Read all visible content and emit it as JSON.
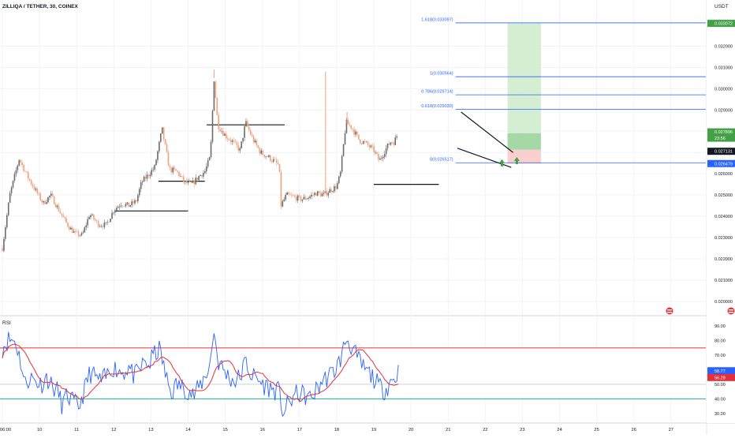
{
  "header": {
    "symbol_title": "ZILLIQA / TETHER, 30, COINEX",
    "currency": "USDT"
  },
  "colors": {
    "candle_up": "#6b6b6b",
    "candle_down": "#f0a27a",
    "rsi_line": "#2962ff",
    "rsi_ma": "#e5303a",
    "rsi_upper_band": "#e5303a",
    "rsi_lower_band": "#22ab94",
    "fib_line": "#2962ff",
    "target_zone": "#cdebc9",
    "stop_zone": "#f8c7c8"
  },
  "price_axis": {
    "labels": [
      "0.020000",
      "0.021000",
      "0.022000",
      "0.023000",
      "0.024000",
      "0.025000",
      "0.026000",
      "0.027000",
      "0.028000",
      "0.029000",
      "0.030000",
      "0.031000",
      "0.032000"
    ],
    "badges": [
      {
        "text": "0.033072",
        "color": "#43a047"
      },
      {
        "text": "0.027896",
        "color": "#43a047"
      },
      {
        "text": "23:56",
        "color": "#43a047"
      },
      {
        "text": "0.027131",
        "color": "#131722"
      },
      {
        "text": "0.026479",
        "color": "#2962ff"
      }
    ]
  },
  "fib_levels": [
    {
      "label": "1.618(0.033097)",
      "value": 0.033097
    },
    {
      "label": "1(0.030564)",
      "value": 0.030564
    },
    {
      "label": "0.786(0.029714)",
      "value": 0.029714
    },
    {
      "label": "0.618(0.029030)",
      "value": 0.02903
    },
    {
      "label": "0(0.026517)",
      "value": 0.026517
    }
  ],
  "time_axis": {
    "labels": [
      "06:00",
      "10",
      "11",
      "12",
      "13",
      "14",
      "15",
      "16",
      "17",
      "18",
      "19",
      "20",
      "21",
      "22",
      "23",
      "24",
      "25",
      "26",
      "27"
    ]
  },
  "rsi_panel": {
    "title": "RSI",
    "axis_labels": [
      "90.00",
      "80.00",
      "70.00",
      "60.00",
      "50.00",
      "40.00",
      "30.00"
    ],
    "badges": [
      {
        "text": "58.77",
        "color": "#2962ff"
      },
      {
        "text": "56.28",
        "color": "#e5303a"
      }
    ]
  },
  "chart_data": {
    "type": "candlestick",
    "title": "ZILLIQA / TETHER, 30, COINEX",
    "ylabel": "USDT",
    "ylim": [
      0.0194,
      0.0338
    ],
    "x": [
      "06:00",
      "10",
      "11",
      "12",
      "13",
      "14",
      "15",
      "16",
      "17",
      "18",
      "19",
      "20",
      "21",
      "22",
      "23",
      "24",
      "25",
      "26",
      "27"
    ],
    "price_path": [
      [
        0.0,
        0.0225
      ],
      [
        0.2,
        0.025
      ],
      [
        0.45,
        0.0267
      ],
      [
        0.7,
        0.0258
      ],
      [
        0.9,
        0.0252
      ],
      [
        1.1,
        0.0246
      ],
      [
        1.3,
        0.025
      ],
      [
        1.55,
        0.0242
      ],
      [
        1.75,
        0.0236
      ],
      [
        1.95,
        0.0232
      ],
      [
        2.15,
        0.0231
      ],
      [
        2.35,
        0.0241
      ],
      [
        2.6,
        0.0236
      ],
      [
        2.8,
        0.0236
      ],
      [
        3.0,
        0.0243
      ],
      [
        3.2,
        0.0246
      ],
      [
        3.4,
        0.0245
      ],
      [
        3.6,
        0.0247
      ],
      [
        3.75,
        0.0256
      ],
      [
        3.95,
        0.026
      ],
      [
        4.1,
        0.0263
      ],
      [
        4.3,
        0.0281
      ],
      [
        4.5,
        0.0262
      ],
      [
        4.7,
        0.0261
      ],
      [
        4.9,
        0.0256
      ],
      [
        5.1,
        0.0255
      ],
      [
        5.3,
        0.0259
      ],
      [
        5.45,
        0.0261
      ],
      [
        5.6,
        0.0268
      ],
      [
        5.7,
        0.0305
      ],
      [
        5.8,
        0.0283
      ],
      [
        6.0,
        0.0278
      ],
      [
        6.2,
        0.0275
      ],
      [
        6.4,
        0.0271
      ],
      [
        6.55,
        0.0284
      ],
      [
        6.75,
        0.0276
      ],
      [
        6.95,
        0.027
      ],
      [
        7.15,
        0.0268
      ],
      [
        7.3,
        0.0266
      ],
      [
        7.45,
        0.0264
      ],
      [
        7.5,
        0.0245
      ],
      [
        7.65,
        0.025
      ],
      [
        7.85,
        0.0249
      ],
      [
        8.05,
        0.0248
      ],
      [
        8.25,
        0.0249
      ],
      [
        8.45,
        0.0251
      ],
      [
        8.65,
        0.025
      ],
      [
        8.8,
        0.0252
      ],
      [
        9.0,
        0.0254
      ],
      [
        9.1,
        0.026
      ],
      [
        9.25,
        0.0284
      ],
      [
        9.4,
        0.0282
      ],
      [
        9.6,
        0.0276
      ],
      [
        9.8,
        0.0274
      ],
      [
        10.0,
        0.0271
      ],
      [
        10.15,
        0.0266
      ],
      [
        10.3,
        0.0271
      ],
      [
        10.45,
        0.0275
      ],
      [
        10.55,
        0.0275
      ],
      [
        10.65,
        0.0279
      ]
    ],
    "horizontal_levels": [
      {
        "y": 0.02425
      },
      {
        "y": 0.02565
      },
      {
        "y": 0.0283
      },
      {
        "y": 0.0255
      }
    ],
    "position_tool": {
      "entry": 0.027131,
      "target": 0.033072,
      "stop": 0.026479
    },
    "rsi": {
      "ylim": [
        25,
        95
      ],
      "upper_band": 75,
      "lower_band": 40,
      "last_value": 58.77,
      "last_ma": 56.28,
      "path": [
        [
          0.0,
          75
        ],
        [
          0.15,
          81
        ],
        [
          0.35,
          80
        ],
        [
          0.5,
          65
        ],
        [
          0.6,
          50
        ],
        [
          0.75,
          55
        ],
        [
          0.9,
          52
        ],
        [
          1.05,
          50
        ],
        [
          1.2,
          55
        ],
        [
          1.35,
          48
        ],
        [
          1.5,
          45
        ],
        [
          1.6,
          36
        ],
        [
          1.75,
          42
        ],
        [
          1.9,
          38
        ],
        [
          2.05,
          34
        ],
        [
          2.2,
          45
        ],
        [
          2.35,
          58
        ],
        [
          2.5,
          55
        ],
        [
          2.65,
          52
        ],
        [
          2.8,
          55
        ],
        [
          2.95,
          62
        ],
        [
          3.1,
          60
        ],
        [
          3.25,
          58
        ],
        [
          3.4,
          62
        ],
        [
          3.55,
          55
        ],
        [
          3.7,
          60
        ],
        [
          3.85,
          66
        ],
        [
          3.95,
          62
        ],
        [
          4.05,
          70
        ],
        [
          4.25,
          74
        ],
        [
          4.4,
          55
        ],
        [
          4.55,
          44
        ],
        [
          4.7,
          50
        ],
        [
          4.85,
          48
        ],
        [
          5.0,
          46
        ],
        [
          5.15,
          42
        ],
        [
          5.3,
          48
        ],
        [
          5.45,
          55
        ],
        [
          5.6,
          65
        ],
        [
          5.7,
          88
        ],
        [
          5.8,
          66
        ],
        [
          5.95,
          60
        ],
        [
          6.1,
          55
        ],
        [
          6.25,
          52
        ],
        [
          6.4,
          55
        ],
        [
          6.55,
          66
        ],
        [
          6.7,
          56
        ],
        [
          6.85,
          54
        ],
        [
          7.0,
          50
        ],
        [
          7.15,
          48
        ],
        [
          7.3,
          46
        ],
        [
          7.45,
          45
        ],
        [
          7.55,
          30
        ],
        [
          7.7,
          36
        ],
        [
          7.85,
          42
        ],
        [
          8.0,
          44
        ],
        [
          8.15,
          42
        ],
        [
          8.3,
          40
        ],
        [
          8.45,
          46
        ],
        [
          8.6,
          52
        ],
        [
          8.75,
          55
        ],
        [
          8.9,
          58
        ],
        [
          9.0,
          62
        ],
        [
          9.15,
          70
        ],
        [
          9.25,
          82
        ],
        [
          9.4,
          76
        ],
        [
          9.55,
          68
        ],
        [
          9.7,
          62
        ],
        [
          9.85,
          58
        ],
        [
          10.0,
          54
        ],
        [
          10.15,
          48
        ],
        [
          10.3,
          46
        ],
        [
          10.45,
          52
        ],
        [
          10.6,
          55
        ],
        [
          10.7,
          62
        ]
      ]
    }
  }
}
